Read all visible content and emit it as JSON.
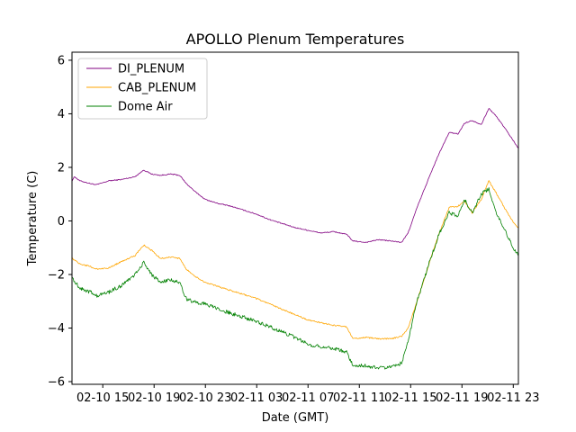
{
  "chart_data": {
    "type": "line",
    "title": "APOLLO Plenum Temperatures",
    "xlabel": "Date (GMT)",
    "ylabel": "Temperature (C)",
    "xlim_hours": [
      12.6,
      47.4
    ],
    "ylim": [
      -6.1,
      6.3
    ],
    "yticks": [
      -6,
      -4,
      -2,
      0,
      2,
      4,
      6
    ],
    "xticks": [
      {
        "hour": 15,
        "label": "02-10 15"
      },
      {
        "hour": 19,
        "label": "02-10 19"
      },
      {
        "hour": 23,
        "label": "02-10 23"
      },
      {
        "hour": 27,
        "label": "02-11 03"
      },
      {
        "hour": 31,
        "label": "02-11 07"
      },
      {
        "hour": 35,
        "label": "02-11 11"
      },
      {
        "hour": 39,
        "label": "02-11 15"
      },
      {
        "hour": 43,
        "label": "02-11 19"
      },
      {
        "hour": 47,
        "label": "02-11 23"
      }
    ],
    "grid": false,
    "legend_position": "top-left",
    "series": [
      {
        "name": "DI_PLENUM",
        "color": "#800080",
        "x": [
          12.6,
          12.8,
          13.2,
          14.0,
          14.5,
          15.5,
          16.5,
          17.5,
          18.2,
          18.8,
          19.5,
          20.3,
          21.0,
          21.5,
          22.3,
          23.0,
          24.0,
          25.0,
          26.0,
          27.0,
          28.0,
          29.0,
          30.0,
          31.0,
          32.0,
          33.0,
          34.0,
          34.5,
          35.5,
          36.5,
          37.5,
          38.3,
          38.8,
          39.5,
          40.5,
          41.2,
          42.0,
          42.7,
          43.2,
          43.8,
          44.5,
          45.1,
          45.6,
          46.3,
          47.0,
          47.4
        ],
        "y": [
          1.5,
          1.65,
          1.5,
          1.4,
          1.35,
          1.5,
          1.55,
          1.65,
          1.9,
          1.75,
          1.7,
          1.75,
          1.7,
          1.4,
          1.05,
          0.8,
          0.65,
          0.55,
          0.4,
          0.25,
          0.05,
          -0.1,
          -0.25,
          -0.35,
          -0.45,
          -0.4,
          -0.5,
          -0.75,
          -0.8,
          -0.7,
          -0.75,
          -0.8,
          -0.45,
          0.5,
          1.7,
          2.5,
          3.3,
          3.25,
          3.65,
          3.75,
          3.6,
          4.2,
          3.95,
          3.5,
          3.0,
          2.7
        ]
      },
      {
        "name": "CAB_PLENUM",
        "color": "#FFA500",
        "x": [
          12.6,
          12.8,
          13.2,
          14.0,
          14.5,
          15.5,
          16.5,
          17.5,
          18.2,
          18.8,
          19.5,
          20.3,
          21.0,
          21.5,
          22.3,
          23.0,
          24.0,
          25.0,
          26.0,
          27.0,
          28.0,
          29.0,
          30.0,
          31.0,
          32.0,
          33.0,
          34.0,
          34.5,
          35.5,
          36.5,
          37.5,
          38.3,
          38.8,
          39.5,
          40.5,
          41.2,
          42.0,
          42.7,
          43.2,
          43.8,
          44.5,
          45.1,
          45.6,
          46.3,
          47.0,
          47.4
        ],
        "y": [
          -1.4,
          -1.45,
          -1.6,
          -1.7,
          -1.8,
          -1.75,
          -1.5,
          -1.3,
          -0.9,
          -1.1,
          -1.4,
          -1.35,
          -1.4,
          -1.8,
          -2.1,
          -2.3,
          -2.45,
          -2.6,
          -2.75,
          -2.9,
          -3.1,
          -3.3,
          -3.5,
          -3.7,
          -3.8,
          -3.9,
          -3.95,
          -4.4,
          -4.35,
          -4.4,
          -4.4,
          -4.3,
          -4.0,
          -3.0,
          -1.5,
          -0.5,
          0.5,
          0.55,
          0.75,
          0.3,
          0.8,
          1.5,
          1.1,
          0.5,
          -0.05,
          -0.25
        ]
      },
      {
        "name": "Dome Air",
        "color": "#008000",
        "x": [
          12.6,
          12.8,
          13.2,
          14.0,
          14.5,
          15.5,
          16.5,
          17.5,
          18.2,
          18.8,
          19.5,
          20.3,
          21.0,
          21.5,
          22.3,
          23.0,
          24.0,
          25.0,
          26.0,
          27.0,
          28.0,
          29.0,
          30.0,
          31.0,
          32.0,
          33.0,
          34.0,
          34.5,
          35.5,
          36.5,
          37.5,
          38.3,
          38.8,
          39.5,
          40.5,
          41.2,
          42.0,
          42.7,
          43.2,
          43.8,
          44.5,
          45.1,
          45.6,
          46.3,
          47.0,
          47.4
        ],
        "y": [
          -2.1,
          -2.25,
          -2.5,
          -2.65,
          -2.8,
          -2.65,
          -2.4,
          -2.0,
          -1.55,
          -2.0,
          -2.3,
          -2.2,
          -2.3,
          -2.9,
          -3.05,
          -3.1,
          -3.3,
          -3.45,
          -3.6,
          -3.75,
          -3.95,
          -4.15,
          -4.35,
          -4.6,
          -4.7,
          -4.75,
          -4.9,
          -5.4,
          -5.4,
          -5.5,
          -5.45,
          -5.3,
          -4.5,
          -3.0,
          -1.5,
          -0.5,
          0.3,
          0.2,
          0.8,
          0.3,
          1.0,
          1.2,
          0.4,
          -0.3,
          -1.0,
          -1.3
        ]
      }
    ]
  }
}
